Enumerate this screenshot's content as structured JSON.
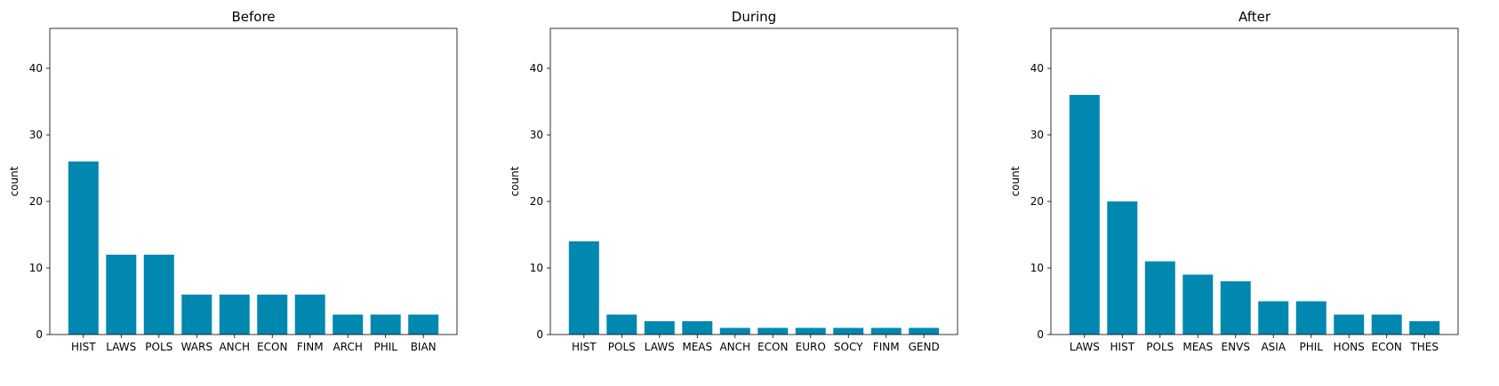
{
  "colors": {
    "bar": "#0088B0",
    "axis": "#000000",
    "background": "#ffffff"
  },
  "chart_data": [
    {
      "type": "bar",
      "title": "Before",
      "xlabel": "",
      "ylabel": "count",
      "ylim": [
        0,
        46
      ],
      "yticks": [
        0,
        10,
        20,
        30,
        40
      ],
      "grid": false,
      "categories": [
        "HIST",
        "LAWS",
        "POLS",
        "WARS",
        "ANCH",
        "ECON",
        "FINM",
        "ARCH",
        "PHIL",
        "BIAN"
      ],
      "values": [
        26,
        12,
        12,
        6,
        6,
        6,
        6,
        3,
        3,
        3
      ]
    },
    {
      "type": "bar",
      "title": "During",
      "xlabel": "",
      "ylabel": "count",
      "ylim": [
        0,
        46
      ],
      "yticks": [
        0,
        10,
        20,
        30,
        40
      ],
      "grid": false,
      "categories": [
        "HIST",
        "POLS",
        "LAWS",
        "MEAS",
        "ANCH",
        "ECON",
        "EURO",
        "SOCY",
        "FINM",
        "GEND"
      ],
      "values": [
        14,
        3,
        2,
        2,
        1,
        1,
        1,
        1,
        1,
        1
      ]
    },
    {
      "type": "bar",
      "title": "After",
      "xlabel": "",
      "ylabel": "count",
      "ylim": [
        0,
        46
      ],
      "yticks": [
        0,
        10,
        20,
        30,
        40
      ],
      "grid": false,
      "categories": [
        "LAWS",
        "HIST",
        "POLS",
        "MEAS",
        "ENVS",
        "ASIA",
        "PHIL",
        "HONS",
        "ECON",
        "THES"
      ],
      "values": [
        36,
        20,
        11,
        9,
        8,
        5,
        5,
        3,
        3,
        2
      ]
    }
  ]
}
